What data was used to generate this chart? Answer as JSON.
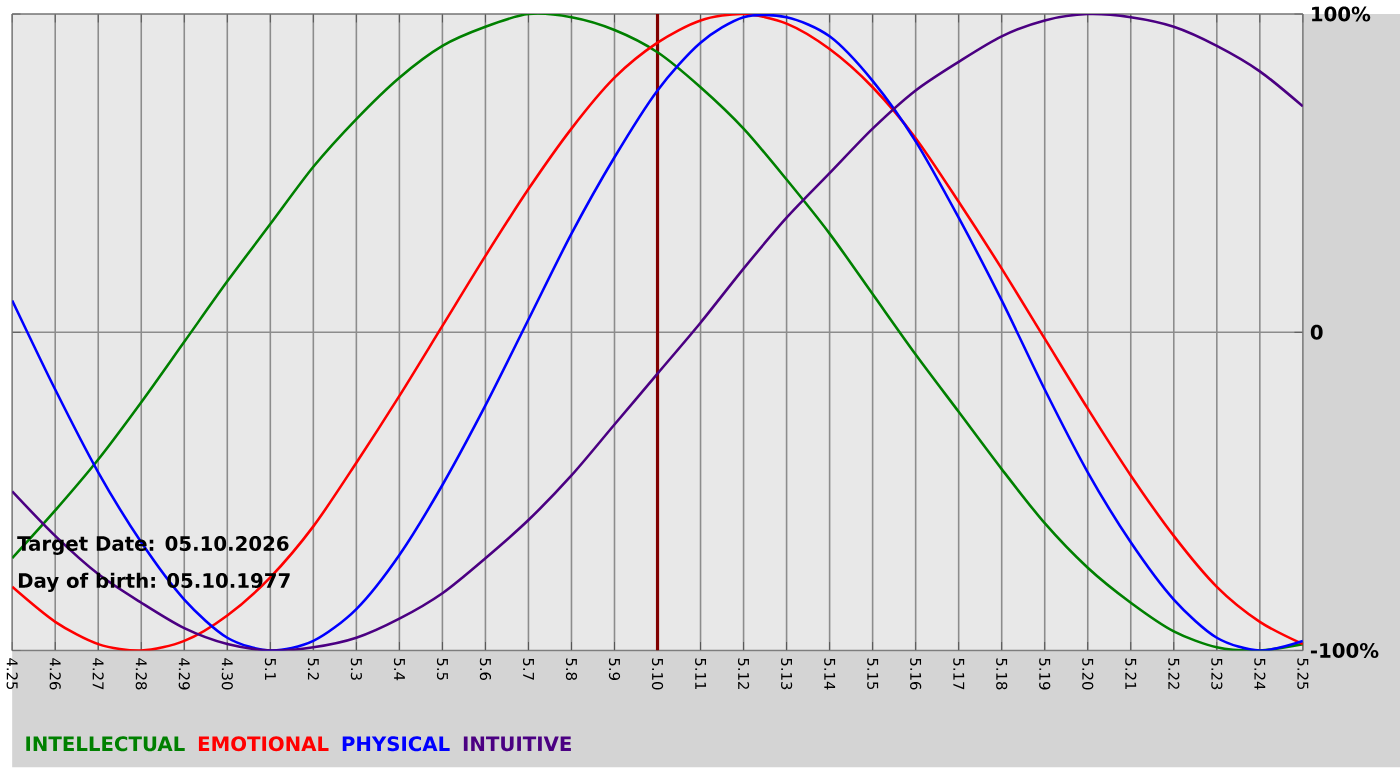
{
  "chart_data": {
    "type": "line",
    "categories": [
      "4.25",
      "4.26",
      "4.27",
      "4.28",
      "4.29",
      "4.30",
      "5.1",
      "5.2",
      "5.3",
      "5.4",
      "5.5",
      "5.6",
      "5.7",
      "5.8",
      "5.9",
      "5.10",
      "5.11",
      "5.12",
      "5.13",
      "5.14",
      "5.15",
      "5.16",
      "5.17",
      "5.18",
      "5.19",
      "5.20",
      "5.21",
      "5.22",
      "5.23",
      "5.24",
      "5.25"
    ],
    "series": [
      {
        "name": "INTELLECTUAL",
        "color": "#008000",
        "values": [
          -71,
          -56,
          -40,
          -22,
          -3,
          16,
          34,
          52,
          67,
          80,
          90,
          96,
          100,
          99,
          95,
          88,
          77,
          64,
          48,
          31,
          12,
          -7,
          -25,
          -43,
          -60,
          -74,
          -85,
          -94,
          -99,
          -100,
          -98
        ]
      },
      {
        "name": "EMOTIONAL",
        "color": "#ff0000",
        "values": [
          -80,
          -91,
          -98,
          -100,
          -97,
          -89,
          -77,
          -61,
          -41,
          -20,
          2,
          24,
          45,
          64,
          80,
          91,
          98,
          100,
          97,
          89,
          77,
          61,
          41,
          20,
          -2,
          -24,
          -45,
          -64,
          -80,
          -91,
          -98
        ]
      },
      {
        "name": "PHYSICAL",
        "color": "#0000ff",
        "values": [
          10,
          -18,
          -44,
          -66,
          -84,
          -96,
          -100,
          -97,
          -87,
          -70,
          -48,
          -23,
          4,
          31,
          55,
          76,
          91,
          99,
          99,
          93,
          79,
          60,
          36,
          10,
          -18,
          -44,
          -66,
          -84,
          -96,
          -100,
          -97
        ]
      },
      {
        "name": "INTUITIVE",
        "color": "#4b0082",
        "values": [
          -50,
          -64,
          -76,
          -85,
          -93,
          -98,
          -100,
          -99,
          -96,
          -90,
          -82,
          -71,
          -59,
          -45,
          -29,
          -13,
          3,
          20,
          36,
          50,
          64,
          76,
          85,
          93,
          98,
          100,
          99,
          96,
          90,
          82,
          71
        ]
      }
    ],
    "ylim": [
      -100,
      100
    ],
    "yticks": [
      {
        "value": 100,
        "label": "100%"
      },
      0,
      {
        "value": -100,
        "label": "-100%"
      }
    ],
    "grid": true,
    "legend": "bottom",
    "marker": "none",
    "line_style": "solid",
    "ref_lines": [
      {
        "axis": "x",
        "value": "5.10",
        "color": "#800000"
      }
    ],
    "annotations": [
      "Target Date: 05.10.2026",
      "Day of birth: 05.10.1977"
    ]
  }
}
